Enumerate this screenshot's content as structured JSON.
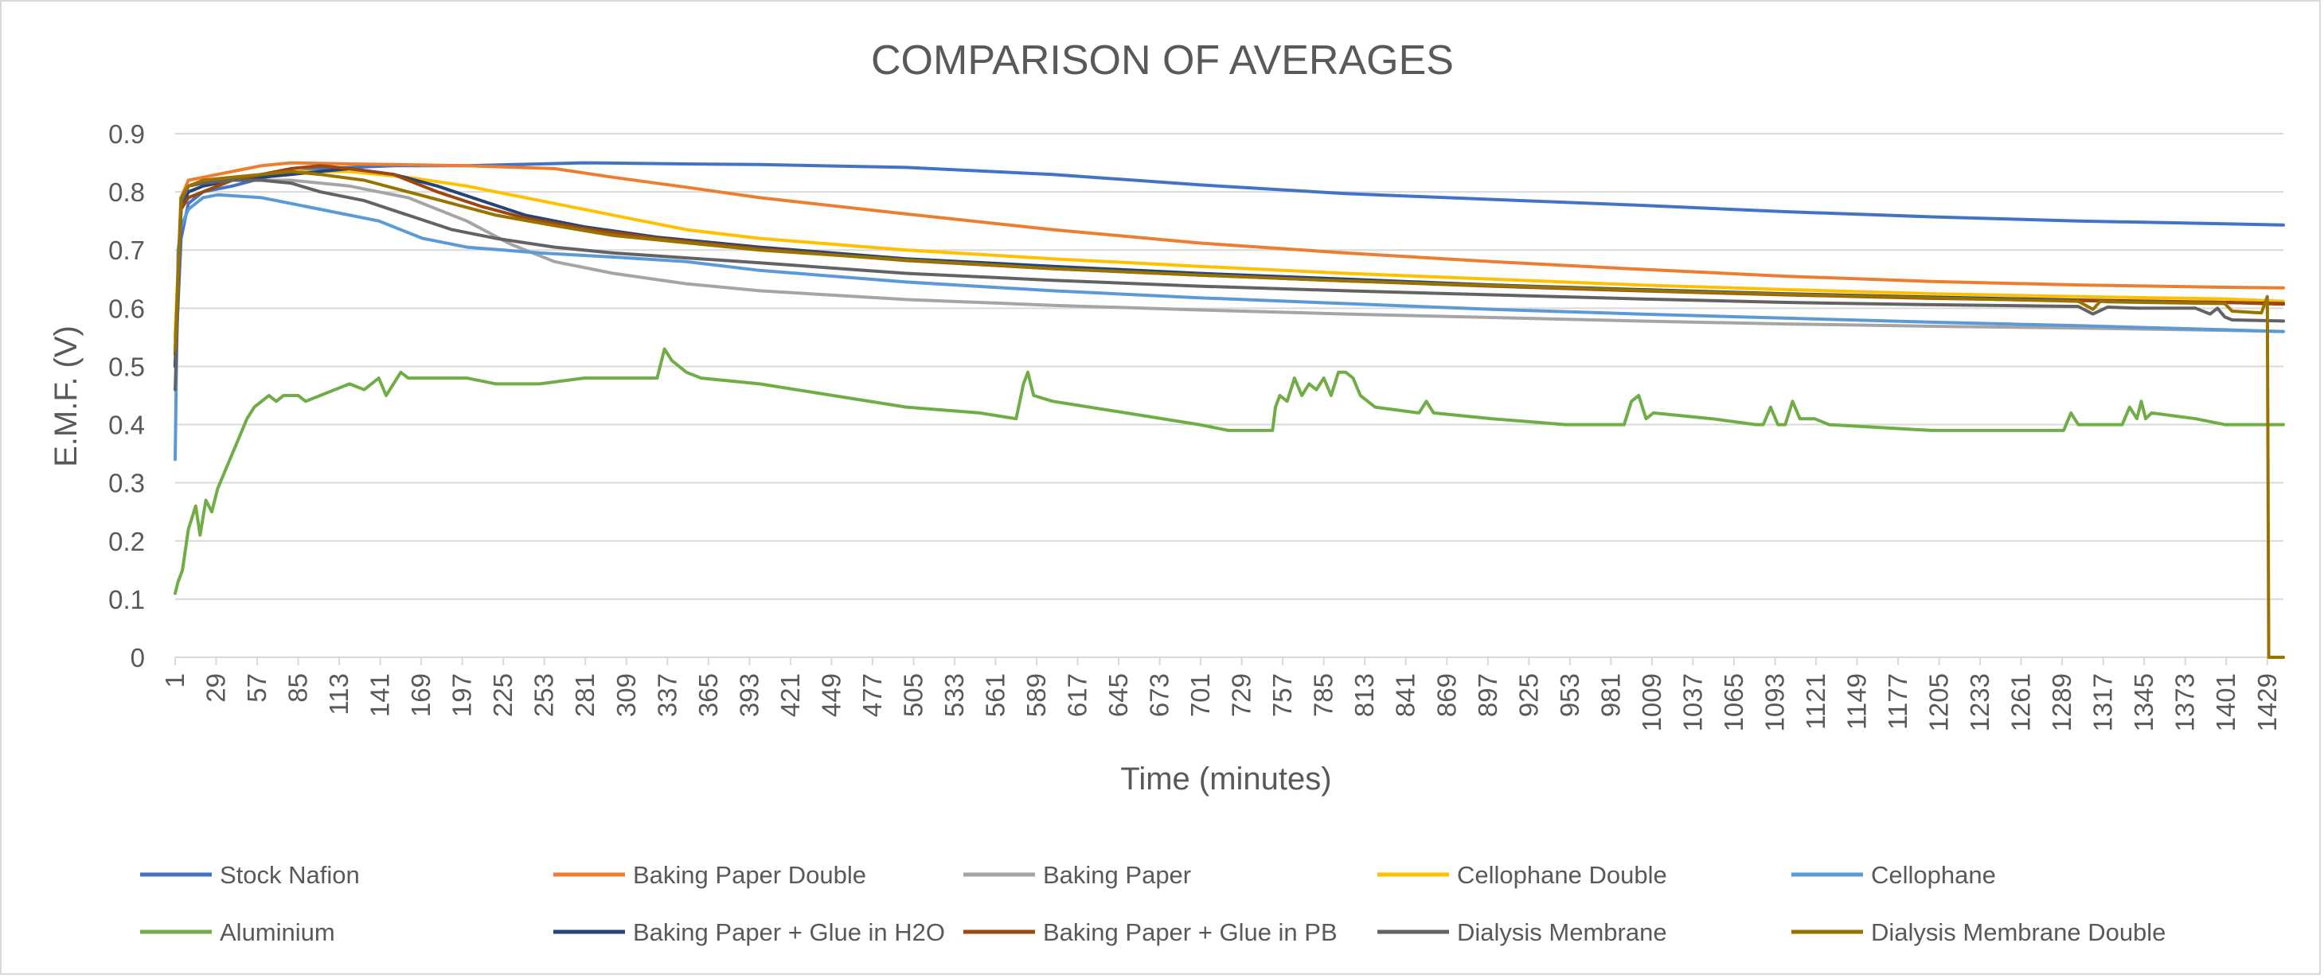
{
  "chart_data": {
    "type": "line",
    "title": "COMPARISON OF AVERAGES",
    "xlabel": "Time (minutes)",
    "ylabel": "E.M.F. (V)",
    "xlim": [
      1,
      1440
    ],
    "ylim": [
      0,
      0.9
    ],
    "yticks": [
      "0",
      "0.1",
      "0.2",
      "0.3",
      "0.4",
      "0.5",
      "0.6",
      "0.7",
      "0.8",
      "0.9"
    ],
    "xticks": [
      "1",
      "29",
      "57",
      "85",
      "113",
      "141",
      "169",
      "197",
      "225",
      "253",
      "281",
      "309",
      "337",
      "365",
      "393",
      "421",
      "449",
      "477",
      "505",
      "533",
      "561",
      "589",
      "617",
      "645",
      "673",
      "701",
      "729",
      "757",
      "785",
      "813",
      "841",
      "869",
      "897",
      "925",
      "953",
      "981",
      "1009",
      "1037",
      "1065",
      "1093",
      "1121",
      "1149",
      "1177",
      "1205",
      "1233",
      "1261",
      "1289",
      "1317",
      "1345",
      "1373",
      "1401",
      "1429"
    ],
    "grid": true,
    "legend_position": "bottom",
    "series": [
      {
        "name": "Stock Nafion",
        "color": "#4472C4",
        "x": [
          1,
          5,
          10,
          20,
          40,
          70,
          100,
          150,
          200,
          250,
          280,
          350,
          400,
          500,
          600,
          700,
          800,
          900,
          1000,
          1100,
          1200,
          1300,
          1400,
          1440
        ],
        "y": [
          0.5,
          0.72,
          0.78,
          0.8,
          0.81,
          0.83,
          0.84,
          0.845,
          0.845,
          0.848,
          0.85,
          0.848,
          0.847,
          0.842,
          0.83,
          0.812,
          0.797,
          0.787,
          0.777,
          0.766,
          0.757,
          0.75,
          0.745,
          0.743
        ]
      },
      {
        "name": "Baking Paper Double",
        "color": "#ED7D31",
        "x": [
          1,
          5,
          10,
          20,
          40,
          60,
          80,
          120,
          200,
          260,
          300,
          350,
          400,
          500,
          600,
          700,
          800,
          900,
          1000,
          1100,
          1200,
          1300,
          1400,
          1440
        ],
        "y": [
          0.55,
          0.79,
          0.82,
          0.825,
          0.835,
          0.845,
          0.85,
          0.848,
          0.845,
          0.84,
          0.825,
          0.808,
          0.79,
          0.762,
          0.735,
          0.712,
          0.695,
          0.68,
          0.667,
          0.655,
          0.646,
          0.64,
          0.636,
          0.635
        ]
      },
      {
        "name": "Baking Paper",
        "color": "#A5A5A5",
        "x": [
          1,
          5,
          10,
          20,
          40,
          60,
          80,
          120,
          160,
          200,
          230,
          260,
          300,
          350,
          400,
          500,
          600,
          700,
          800,
          900,
          1000,
          1100,
          1200,
          1300,
          1400,
          1440
        ],
        "y": [
          0.5,
          0.77,
          0.81,
          0.815,
          0.82,
          0.82,
          0.82,
          0.81,
          0.79,
          0.75,
          0.71,
          0.68,
          0.66,
          0.642,
          0.63,
          0.615,
          0.605,
          0.597,
          0.59,
          0.584,
          0.578,
          0.573,
          0.569,
          0.566,
          0.562,
          0.56
        ]
      },
      {
        "name": "Cellophane Double",
        "color": "#FFC000",
        "x": [
          1,
          5,
          10,
          20,
          40,
          60,
          80,
          120,
          160,
          200,
          250,
          300,
          350,
          400,
          500,
          600,
          700,
          800,
          900,
          1000,
          1100,
          1200,
          1300,
          1400,
          1440
        ],
        "y": [
          0.55,
          0.78,
          0.8,
          0.81,
          0.82,
          0.83,
          0.835,
          0.835,
          0.825,
          0.81,
          0.785,
          0.76,
          0.735,
          0.72,
          0.7,
          0.685,
          0.672,
          0.66,
          0.65,
          0.64,
          0.632,
          0.625,
          0.62,
          0.616,
          0.612
        ]
      },
      {
        "name": "Cellophane",
        "color": "#5B9BD5",
        "x": [
          1,
          3,
          5,
          10,
          20,
          30,
          60,
          100,
          140,
          170,
          200,
          250,
          300,
          350,
          400,
          500,
          600,
          700,
          800,
          900,
          1000,
          1100,
          1200,
          1300,
          1400,
          1440
        ],
        "y": [
          0.34,
          0.7,
          0.74,
          0.77,
          0.79,
          0.795,
          0.79,
          0.77,
          0.75,
          0.72,
          0.705,
          0.695,
          0.688,
          0.68,
          0.665,
          0.645,
          0.63,
          0.618,
          0.608,
          0.598,
          0.59,
          0.583,
          0.576,
          0.57,
          0.563,
          0.56
        ]
      },
      {
        "name": "Aluminium",
        "color": "#70AD47",
        "x": [
          1,
          3,
          6,
          10,
          15,
          18,
          22,
          26,
          30,
          35,
          40,
          45,
          50,
          55,
          60,
          65,
          70,
          75,
          85,
          90,
          100,
          110,
          120,
          130,
          140,
          145,
          150,
          155,
          160,
          170,
          180,
          200,
          220,
          250,
          280,
          300,
          330,
          335,
          340,
          345,
          350,
          360,
          400,
          450,
          500,
          550,
          575,
          580,
          583,
          587,
          600,
          650,
          700,
          720,
          750,
          752,
          755,
          760,
          765,
          770,
          775,
          780,
          785,
          790,
          795,
          800,
          805,
          810,
          820,
          850,
          855,
          860,
          900,
          950,
          990,
          995,
          1000,
          1005,
          1010,
          1050,
          1080,
          1085,
          1090,
          1095,
          1100,
          1105,
          1110,
          1120,
          1130,
          1200,
          1290,
          1295,
          1300,
          1330,
          1335,
          1340,
          1343,
          1346,
          1350,
          1380,
          1400,
          1440
        ],
        "y": [
          0.11,
          0.13,
          0.15,
          0.22,
          0.26,
          0.21,
          0.27,
          0.25,
          0.29,
          0.32,
          0.35,
          0.38,
          0.41,
          0.43,
          0.44,
          0.45,
          0.44,
          0.45,
          0.45,
          0.44,
          0.45,
          0.46,
          0.47,
          0.46,
          0.48,
          0.45,
          0.47,
          0.49,
          0.48,
          0.48,
          0.48,
          0.48,
          0.47,
          0.47,
          0.48,
          0.48,
          0.48,
          0.53,
          0.51,
          0.5,
          0.49,
          0.48,
          0.47,
          0.45,
          0.43,
          0.42,
          0.41,
          0.47,
          0.49,
          0.45,
          0.44,
          0.42,
          0.4,
          0.39,
          0.39,
          0.43,
          0.45,
          0.44,
          0.48,
          0.45,
          0.47,
          0.46,
          0.48,
          0.45,
          0.49,
          0.49,
          0.48,
          0.45,
          0.43,
          0.42,
          0.44,
          0.42,
          0.41,
          0.4,
          0.4,
          0.44,
          0.45,
          0.41,
          0.42,
          0.41,
          0.4,
          0.4,
          0.43,
          0.4,
          0.4,
          0.44,
          0.41,
          0.41,
          0.4,
          0.39,
          0.39,
          0.42,
          0.4,
          0.4,
          0.43,
          0.41,
          0.44,
          0.41,
          0.42,
          0.41,
          0.4,
          0.4
        ]
      },
      {
        "name": "Baking Paper + Glue in H2O",
        "color": "#264478",
        "x": [
          1,
          5,
          10,
          20,
          40,
          60,
          80,
          100,
          120,
          150,
          180,
          210,
          240,
          280,
          330,
          400,
          500,
          600,
          700,
          800,
          900,
          1000,
          1100,
          1200,
          1300,
          1400,
          1440
        ],
        "y": [
          0.5,
          0.77,
          0.8,
          0.81,
          0.82,
          0.825,
          0.83,
          0.835,
          0.84,
          0.83,
          0.81,
          0.785,
          0.76,
          0.74,
          0.722,
          0.705,
          0.685,
          0.672,
          0.66,
          0.65,
          0.64,
          0.632,
          0.625,
          0.619,
          0.614,
          0.61,
          0.608
        ]
      },
      {
        "name": "Baking Paper + Glue in PB",
        "color": "#9E480E",
        "x": [
          1,
          5,
          10,
          20,
          40,
          60,
          80,
          100,
          120,
          150,
          180,
          210,
          240,
          280,
          330,
          400,
          500,
          600,
          700,
          800,
          900,
          1000,
          1100,
          1200,
          1300,
          1400,
          1440
        ],
        "y": [
          0.52,
          0.77,
          0.79,
          0.8,
          0.82,
          0.83,
          0.84,
          0.845,
          0.84,
          0.83,
          0.8,
          0.775,
          0.755,
          0.737,
          0.72,
          0.702,
          0.682,
          0.668,
          0.657,
          0.647,
          0.638,
          0.63,
          0.623,
          0.617,
          0.613,
          0.61,
          0.607
        ]
      },
      {
        "name": "Dialysis Membrane",
        "color": "#636363",
        "x": [
          1,
          5,
          10,
          20,
          40,
          60,
          80,
          100,
          130,
          160,
          190,
          220,
          260,
          300,
          400,
          500,
          600,
          700,
          800,
          900,
          1000,
          1100,
          1200,
          1300,
          1310,
          1320,
          1330,
          1340,
          1360,
          1380,
          1390,
          1395,
          1400,
          1405,
          1440
        ],
        "y": [
          0.46,
          0.78,
          0.81,
          0.815,
          0.82,
          0.82,
          0.815,
          0.8,
          0.785,
          0.76,
          0.735,
          0.72,
          0.705,
          0.695,
          0.678,
          0.66,
          0.648,
          0.638,
          0.63,
          0.623,
          0.616,
          0.61,
          0.606,
          0.603,
          0.59,
          0.602,
          0.601,
          0.6,
          0.6,
          0.6,
          0.59,
          0.6,
          0.585,
          0.58,
          0.578
        ]
      },
      {
        "name": "Dialysis Membrane Double",
        "color": "#997300",
        "x": [
          1,
          5,
          10,
          20,
          40,
          60,
          80,
          100,
          130,
          160,
          190,
          220,
          260,
          300,
          400,
          500,
          600,
          700,
          800,
          900,
          1000,
          1100,
          1200,
          1300,
          1310,
          1315,
          1320,
          1400,
          1405,
          1425,
          1429,
          1430,
          1440
        ],
        "y": [
          0.53,
          0.79,
          0.81,
          0.82,
          0.825,
          0.83,
          0.835,
          0.83,
          0.82,
          0.8,
          0.78,
          0.76,
          0.742,
          0.725,
          0.7,
          0.683,
          0.668,
          0.657,
          0.647,
          0.639,
          0.631,
          0.624,
          0.618,
          0.612,
          0.598,
          0.612,
          0.611,
          0.608,
          0.595,
          0.592,
          0.62,
          0.0,
          0.0
        ]
      }
    ]
  }
}
